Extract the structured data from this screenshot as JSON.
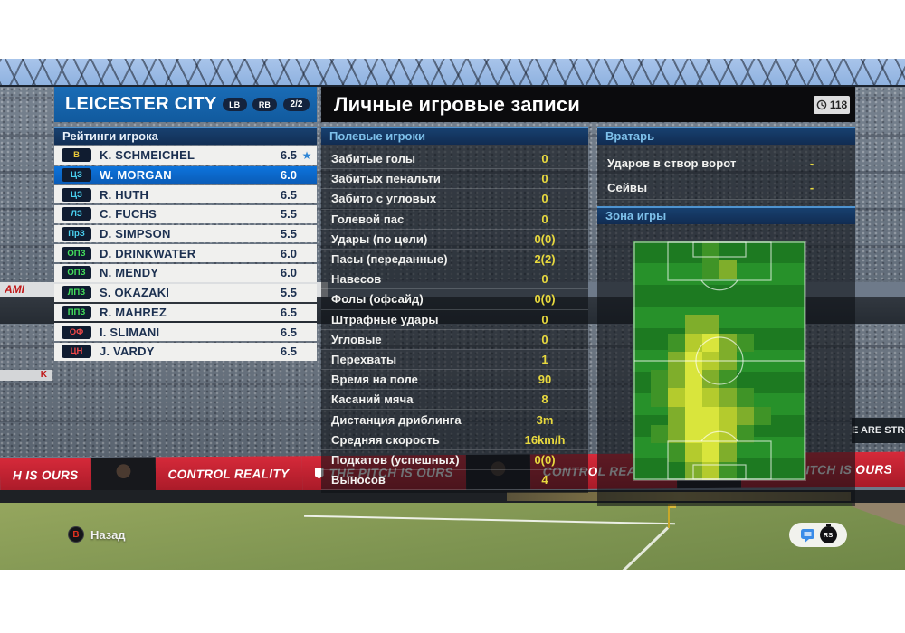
{
  "header": {
    "team": "LEICESTER CITY",
    "lb_button": "LB",
    "rb_button": "RB",
    "page_indicator": "2/2"
  },
  "records_title": "Личные игровые записи",
  "timer": "118",
  "ratings": {
    "title": "Рейтинги игрока",
    "players": [
      {
        "pos": "В",
        "role": "gk",
        "name": "K. SCHMEICHEL",
        "rating": "6.5",
        "star": true,
        "selected": false
      },
      {
        "pos": "ЦЗ",
        "role": "df",
        "name": "W. MORGAN",
        "rating": "6.0",
        "star": false,
        "selected": true
      },
      {
        "pos": "ЦЗ",
        "role": "df",
        "name": "R. HUTH",
        "rating": "6.5",
        "star": false,
        "selected": false
      },
      {
        "pos": "ЛЗ",
        "role": "df",
        "name": "C. FUCHS",
        "rating": "5.5",
        "star": false,
        "selected": false
      },
      {
        "pos": "ПрЗ",
        "role": "df",
        "name": "D. SIMPSON",
        "rating": "5.5",
        "star": false,
        "selected": false
      },
      {
        "pos": "ОПЗ",
        "role": "mf",
        "name": "D. DRINKWATER",
        "rating": "6.0",
        "star": false,
        "selected": false
      },
      {
        "pos": "ОПЗ",
        "role": "mf",
        "name": "N. MENDY",
        "rating": "6.0",
        "star": false,
        "selected": false
      },
      {
        "pos": "ЛПЗ",
        "role": "mf",
        "name": "S. OKAZAKI",
        "rating": "5.5",
        "star": false,
        "selected": false
      },
      {
        "pos": "ППЗ",
        "role": "mf",
        "name": "R. MAHREZ",
        "rating": "6.5",
        "star": false,
        "selected": false
      },
      {
        "pos": "ОФ",
        "role": "fw",
        "name": "I. SLIMANI",
        "rating": "6.5",
        "star": false,
        "selected": false
      },
      {
        "pos": "ЦН",
        "role": "fw",
        "name": "J. VARDY",
        "rating": "6.5",
        "star": false,
        "selected": false
      }
    ]
  },
  "field_section": {
    "title": "Полевые игроки",
    "stats": [
      {
        "label": "Забитые голы",
        "value": "0"
      },
      {
        "label": "Забитых пенальти",
        "value": "0"
      },
      {
        "label": "Забито с угловых",
        "value": "0"
      },
      {
        "label": "Голевой пас",
        "value": "0"
      },
      {
        "label": "Удары (по цели)",
        "value": "0(0)"
      },
      {
        "label": "Пасы (переданные)",
        "value": "2(2)"
      },
      {
        "label": "Навесов",
        "value": "0"
      },
      {
        "label": "Фолы (офсайд)",
        "value": "0(0)"
      },
      {
        "label": "Штрафные удары",
        "value": "0"
      },
      {
        "label": "Угловые",
        "value": "0"
      },
      {
        "label": "Перехваты",
        "value": "1"
      },
      {
        "label": "Время на поле",
        "value": "90"
      },
      {
        "label": "Касаний мяча",
        "value": "8"
      },
      {
        "label": "Дистанция дриблинга",
        "value": "3m"
      },
      {
        "label": "Средняя скорость",
        "value": "16km/h"
      },
      {
        "label": "Подкатов (успешных)",
        "value": "0(0)"
      },
      {
        "label": "Выносов",
        "value": "4"
      }
    ]
  },
  "gk_section": {
    "title": "Вратарь",
    "stats": [
      {
        "label": "Ударов в створ ворот",
        "value": "-"
      },
      {
        "label": "Сейвы",
        "value": "-"
      }
    ]
  },
  "zone_section": {
    "title": "Зона игры",
    "heatmap": [
      [
        0,
        0,
        0,
        0,
        1,
        0,
        0,
        0,
        0,
        0
      ],
      [
        0,
        0,
        0,
        0,
        1,
        2,
        0,
        0,
        0,
        0
      ],
      [
        0,
        0,
        0,
        0,
        0,
        0,
        0,
        0,
        0,
        0
      ],
      [
        0,
        0,
        0,
        0,
        0,
        0,
        0,
        0,
        0,
        0
      ],
      [
        0,
        0,
        0,
        2,
        2,
        0,
        0,
        0,
        0,
        0
      ],
      [
        0,
        0,
        1,
        3,
        4,
        2,
        1,
        0,
        0,
        0
      ],
      [
        0,
        0,
        2,
        4,
        3,
        2,
        0,
        0,
        0,
        0
      ],
      [
        0,
        1,
        2,
        4,
        2,
        1,
        0,
        0,
        0,
        0
      ],
      [
        0,
        1,
        3,
        4,
        3,
        2,
        1,
        0,
        0,
        0
      ],
      [
        0,
        0,
        2,
        4,
        4,
        3,
        2,
        1,
        0,
        0
      ],
      [
        0,
        1,
        2,
        4,
        4,
        3,
        1,
        0,
        0,
        0
      ],
      [
        0,
        0,
        1,
        3,
        4,
        2,
        0,
        0,
        0,
        0
      ],
      [
        0,
        0,
        0,
        2,
        3,
        1,
        0,
        0,
        0,
        0
      ]
    ]
  },
  "footer": {
    "back_button": "B",
    "back_label": "Назад",
    "rs_label": "RS"
  },
  "background": {
    "ads": [
      "H IS OURS",
      "",
      "CONTROL REALITY",
      "THE PITCH IS OURS",
      "",
      "CONTROL REALITY",
      "",
      "THE PITCH IS OURS"
    ],
    "ads_with_shield": [
      3,
      7
    ],
    "left_band_text": "AMI",
    "left_band_text2": "K",
    "right_banner_text": "E ARE STRO"
  },
  "colors": {
    "selected_row": "#0d6fd6",
    "value_yellow": "#e8d93e",
    "board_red": "#c22030",
    "star_blue": "#2f86d6",
    "roles": {
      "gk": "#e8c83a",
      "df": "#4ad0f0",
      "mf": "#44e05c",
      "fw": "#f04848"
    },
    "heat": [
      "transparent",
      "#3f9427",
      "#7fae2b",
      "#b4cb2d",
      "#d9e53c"
    ]
  }
}
